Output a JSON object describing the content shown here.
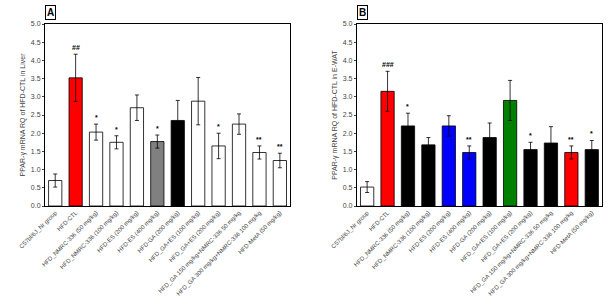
{
  "chart_data": [
    {
      "type": "bar",
      "title": "A",
      "ylabel": "PPAR-γ mRNA RQ of HFD-CTL in Liver",
      "categories": [
        "C57bl/6J_Nr group",
        "HFD-CTL",
        "HFD_NMRC-336 (50 mg/kg)",
        "HFD_NMRC-336 (100 mg/kg)",
        "HFD-ES (200 mg/kg)",
        "HFD-ES (400 mg/kg)",
        "HFD-GA (200 mg/kg)",
        "HFD_GA+ES (100 mg/kg)",
        "HFD_GA+ES (200 mg/kg)",
        "HFD_GA 150 mg/kg+NMRC-336 50 mg/kg",
        "HFD_GA 300 mg/kg+NMRC-336 100 mg/kg",
        "HFD-MetA (50 mg/kg)"
      ],
      "values": [
        0.7,
        3.52,
        2.03,
        1.75,
        2.7,
        1.77,
        2.35,
        2.88,
        1.65,
        2.25,
        1.47,
        1.25
      ],
      "errors": [
        0.18,
        0.65,
        0.22,
        0.18,
        0.35,
        0.18,
        0.55,
        0.65,
        0.35,
        0.28,
        0.18,
        0.2
      ],
      "annotations": [
        null,
        "##",
        "*",
        "*",
        null,
        "*",
        null,
        null,
        "*",
        null,
        "**",
        "**"
      ],
      "colors": [
        "white",
        "red",
        "white",
        "white",
        "white",
        "gray",
        "black",
        "white",
        "white",
        "white",
        "white",
        "white"
      ],
      "ylim": [
        0,
        5.0
      ],
      "yticks": [
        {
          "value": 0,
          "label": "0.0"
        },
        0.5,
        {
          "value": 1,
          "label": "1.0"
        },
        1.5,
        {
          "value": 2,
          "label": "2.0"
        },
        2.5,
        {
          "value": 3,
          "label": "3.0"
        },
        3.5,
        {
          "value": 4,
          "label": "4.0"
        },
        4.5,
        {
          "value": 5,
          "label": "5.0"
        }
      ],
      "grid": false
    },
    {
      "type": "bar",
      "title": "B",
      "ylabel": "PPAR-γ mRNA RQ of HFD-CTL in E-WAT",
      "categories": [
        "C57bl/6J_Nr group",
        "HFD-CTL",
        "HFD_NMRC-336 (50 mg/kg)",
        "HFD_NMRC-336 (100 mg/kg)",
        "HFD-ES (200 mg/kg)",
        "HFD-ES (400 mg/kg)",
        "HFD-GA (200 mg/kg)",
        "HFD_GA+ES (100 mg/kg)",
        "HFD_GA+ES (200 mg/kg)",
        "HFD_GA 150 mg/kg+NMRC-336 50 mg/kg",
        "HFD_GA 300 mg/kg+NMRC-336 100 mg/kg",
        "HFD-MetA (50 mg/kg)"
      ],
      "values": [
        0.52,
        3.15,
        2.2,
        1.68,
        2.2,
        1.47,
        1.88,
        2.9,
        1.55,
        1.73,
        1.47,
        1.55
      ],
      "errors": [
        0.15,
        0.55,
        0.35,
        0.2,
        0.28,
        0.18,
        0.4,
        0.55,
        0.2,
        0.45,
        0.18,
        0.25
      ],
      "annotations": [
        null,
        "###",
        "*",
        null,
        null,
        "**",
        null,
        null,
        "*",
        null,
        "**",
        "*"
      ],
      "colors": [
        "white",
        "red",
        "black",
        "black",
        "blue",
        "blue",
        "black",
        "green",
        "black",
        "black",
        "red",
        "black"
      ],
      "ylim": [
        0,
        5.0
      ],
      "yticks": [
        {
          "value": 0,
          "label": "0.0"
        },
        0.5,
        {
          "value": 1,
          "label": "1.0"
        },
        1.5,
        {
          "value": 2,
          "label": "2.0"
        },
        2.5,
        {
          "value": 3,
          "label": "3.0"
        },
        3.5,
        {
          "value": 4,
          "label": "4.0"
        },
        4.5,
        {
          "value": 5,
          "label": "5.0"
        }
      ],
      "grid": false
    }
  ]
}
